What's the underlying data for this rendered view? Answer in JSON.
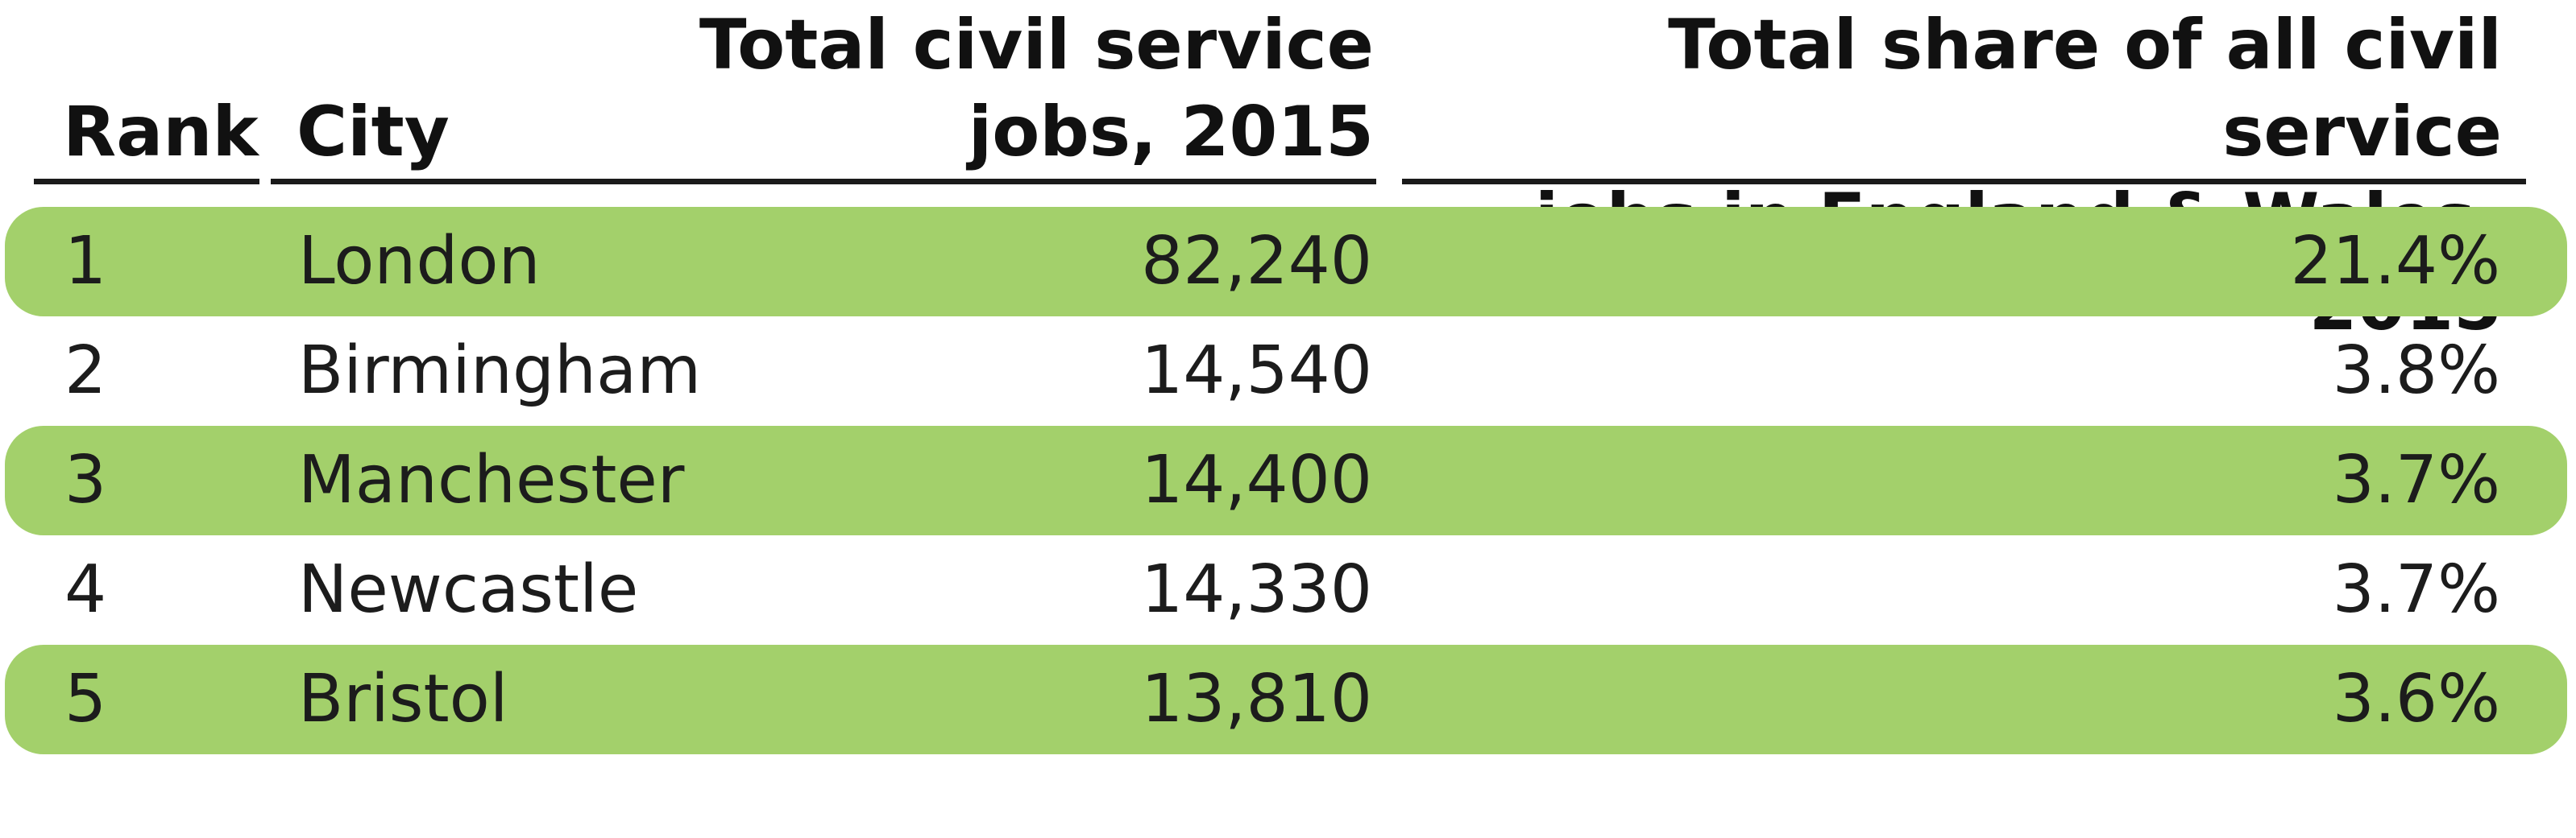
{
  "chart_data": {
    "type": "table",
    "columns": [
      "Rank",
      "City",
      "Total civil service jobs, 2015",
      "Total share of all civil service jobs in England & Wales, 2015"
    ],
    "header": {
      "rank": "Rank",
      "city": "City",
      "jobs_line1": "Total civil service",
      "jobs_line2": "jobs, 2015",
      "share_line1": "Total share of all civil service",
      "share_line2": "jobs in England & Wales, 2015"
    },
    "rows": [
      {
        "rank": "1",
        "city": "London",
        "jobs": "82,240",
        "share": "21.4%"
      },
      {
        "rank": "2",
        "city": "Birmingham",
        "jobs": "14,540",
        "share": "3.8%"
      },
      {
        "rank": "3",
        "city": "Manchester",
        "jobs": "14,400",
        "share": "3.7%"
      },
      {
        "rank": "4",
        "city": "Newcastle",
        "jobs": "14,330",
        "share": "3.7%"
      },
      {
        "rank": "5",
        "city": "Bristol",
        "jobs": "13,810",
        "share": "3.6%"
      }
    ],
    "colors": {
      "row_highlight": "#a3d06b",
      "rule": "#1a1a1a",
      "text": "#1c1c1c"
    }
  }
}
